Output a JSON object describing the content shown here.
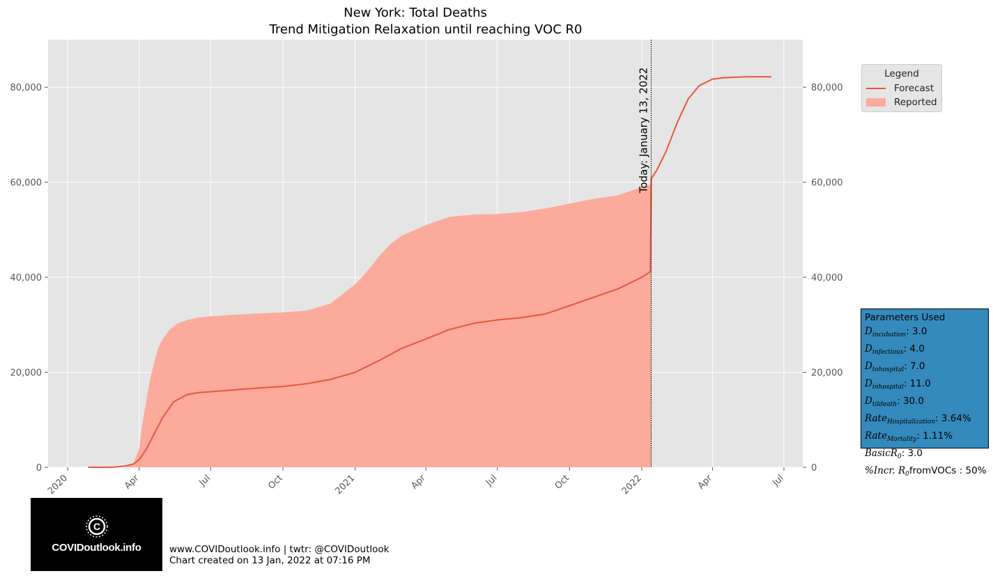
{
  "chart_data": {
    "type": "area",
    "title": "New York: Total Deaths",
    "subtitle": "Trend Mitigation Relaxation until reaching VOC R0",
    "xlabel": "",
    "ylabel": "",
    "ylim": [
      0,
      90000
    ],
    "xlim": [
      "2019-12-07",
      "2022-07-25"
    ],
    "grid": true,
    "legend_placement": "upper-right-outside",
    "x_tick_labels": [
      "2020",
      "Apr",
      "Jul",
      "Oct",
      "2021",
      "Apr",
      "Jul",
      "Oct",
      "2022",
      "Apr",
      "Jul"
    ],
    "x_tick_dates": [
      "2020-01-01",
      "2020-04-01",
      "2020-07-01",
      "2020-10-01",
      "2021-01-01",
      "2021-04-01",
      "2021-07-01",
      "2021-10-01",
      "2022-01-01",
      "2022-04-01",
      "2022-07-01"
    ],
    "y_ticks": [
      0,
      20000,
      40000,
      60000,
      80000
    ],
    "y_tick_labels": [
      "0",
      "20,000",
      "40,000",
      "60,000",
      "80,000"
    ],
    "today_line": {
      "date": "2022-01-13",
      "label": "Today: January 13, 2022"
    },
    "series": [
      {
        "name": "Forecast",
        "kind": "line",
        "color": "#e8553a",
        "x": [
          "2020-01-27",
          "2020-02-15",
          "2020-03-01",
          "2020-03-15",
          "2020-03-25",
          "2020-04-01",
          "2020-04-10",
          "2020-04-20",
          "2020-05-01",
          "2020-05-15",
          "2020-06-01",
          "2020-06-15",
          "2020-07-01",
          "2020-08-01",
          "2020-09-01",
          "2020-10-01",
          "2020-11-01",
          "2020-12-01",
          "2021-01-01",
          "2021-02-01",
          "2021-03-01",
          "2021-04-01",
          "2021-05-01",
          "2021-06-01",
          "2021-07-01",
          "2021-08-01",
          "2021-09-01",
          "2021-10-01",
          "2021-11-01",
          "2021-12-01",
          "2022-01-01",
          "2022-01-12",
          "2022-01-13",
          "2022-01-20",
          "2022-02-01",
          "2022-02-15",
          "2022-03-01",
          "2022-03-15",
          "2022-04-01",
          "2022-04-15",
          "2022-05-01",
          "2022-05-15",
          "2022-06-01",
          "2022-06-15"
        ],
        "values": [
          0,
          0,
          50,
          300,
          700,
          1600,
          3800,
          7000,
          10500,
          13800,
          15300,
          15700,
          15900,
          16300,
          16700,
          17000,
          17600,
          18500,
          20000,
          22500,
          25000,
          27000,
          29000,
          30300,
          31000,
          31500,
          32300,
          34000,
          35800,
          37500,
          40000,
          41200,
          60700,
          62500,
          66500,
          72500,
          77500,
          80300,
          81700,
          82000,
          82100,
          82200,
          82200,
          82200
        ]
      },
      {
        "name": "Reported",
        "kind": "area",
        "color": "#fbaa9c",
        "x": [
          "2020-03-15",
          "2020-03-25",
          "2020-04-01",
          "2020-04-05",
          "2020-04-10",
          "2020-04-15",
          "2020-04-20",
          "2020-04-25",
          "2020-05-01",
          "2020-05-10",
          "2020-05-20",
          "2020-06-01",
          "2020-06-15",
          "2020-07-01",
          "2020-08-01",
          "2020-09-01",
          "2020-10-01",
          "2020-11-01",
          "2020-12-01",
          "2021-01-01",
          "2021-01-15",
          "2021-02-01",
          "2021-02-15",
          "2021-03-01",
          "2021-04-01",
          "2021-05-01",
          "2021-06-01",
          "2021-07-01",
          "2021-08-01",
          "2021-09-01",
          "2021-10-01",
          "2021-11-01",
          "2021-12-01",
          "2022-01-01",
          "2022-01-13"
        ],
        "values": [
          0,
          800,
          4000,
          9000,
          14000,
          18500,
          22000,
          25000,
          27000,
          29000,
          30300,
          31000,
          31500,
          31800,
          32100,
          32400,
          32600,
          33000,
          34500,
          38500,
          41000,
          44500,
          47000,
          48700,
          51000,
          52700,
          53200,
          53300,
          53700,
          54500,
          55500,
          56500,
          57200,
          59000,
          59500
        ]
      }
    ]
  },
  "legend": {
    "title": "Legend",
    "items": [
      {
        "label": "Forecast"
      },
      {
        "label": "Reported"
      }
    ]
  },
  "parameters": {
    "title": "Parameters Used",
    "items": [
      {
        "sym": "D",
        "sub": "incubation",
        "value": ": 3.0"
      },
      {
        "sym": "D",
        "sub": "infectious",
        "value": ": 4.0"
      },
      {
        "sym": "D",
        "sub": "tohospital",
        "value": ": 7.0"
      },
      {
        "sym": "D",
        "sub": "inhospital",
        "value": ": 11.0"
      },
      {
        "sym": "D",
        "sub": "tildeath",
        "value": ": 30.0"
      },
      {
        "sym": "Rate",
        "sub": "Hospitalization",
        "value": ": 3.64%"
      },
      {
        "sym": "Rate",
        "sub": "Mortality",
        "value": ": 1.11%"
      },
      {
        "sym": "BasicR",
        "sub": "0",
        "value": ": 3.0"
      },
      {
        "sym": "%Incr. R",
        "sub": "0",
        "value": "fromVOCs : 50%"
      }
    ]
  },
  "logo": {
    "text": "COVIDoutlook.info"
  },
  "footer": {
    "line1": "www.COVIDoutlook.info | twtr: @COVIDoutlook",
    "line2": "Chart created on 13 Jan, 2022 at 07:16 PM"
  },
  "colors": {
    "plot_background": "#e5e5e5",
    "grid": "#ffffff",
    "forecast": "#e8553a",
    "reported": "#fbaa9c",
    "params_box": "#348abd"
  }
}
